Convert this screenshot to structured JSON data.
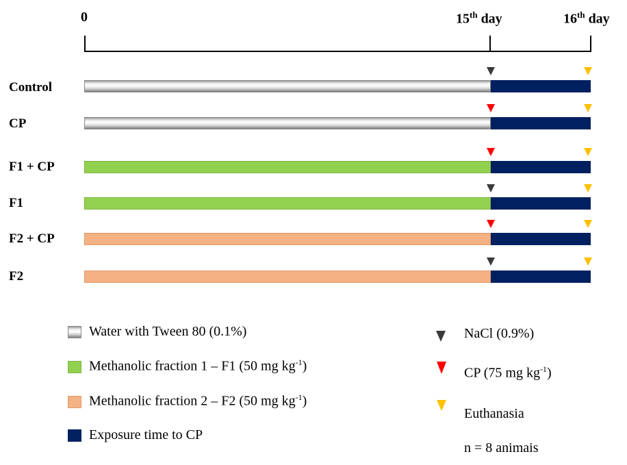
{
  "timeline": {
    "tick_start": "0",
    "tick_mid_num": "15",
    "tick_mid_sup": "th",
    "tick_mid_unit": " day",
    "tick_end_num": "16",
    "tick_end_sup": "th",
    "tick_end_unit": " day"
  },
  "groups": [
    {
      "label": "Control",
      "treatment": "water",
      "marker": "nacl"
    },
    {
      "label": "CP",
      "treatment": "water",
      "marker": "cp"
    },
    {
      "label": "F1 + CP",
      "treatment": "f1",
      "marker": "cp"
    },
    {
      "label": "F1",
      "treatment": "f1",
      "marker": "nacl"
    },
    {
      "label": "F2 + CP",
      "treatment": "f2",
      "marker": "cp"
    },
    {
      "label": "F2",
      "treatment": "f2",
      "marker": "nacl"
    }
  ],
  "legend": {
    "water": "Water with Tween 80 (0.1%)",
    "f1_main": "Methanolic fraction 1 – F1 (50 mg kg",
    "f1_sup": "-1",
    "f1_end": ")",
    "f2_main": "Methanolic fraction 2 – F2 (50 mg kg",
    "f2_sup": "-1",
    "f2_end": ")",
    "exposure": "Exposure time to CP",
    "nacl": "NaCl (0.9%)",
    "cp_main": "CP (75 mg kg",
    "cp_sup": "-1",
    "cp_end": ")",
    "euthanasia": "Euthanasia",
    "n_animals": "n = 8 animais"
  },
  "colors": {
    "water": "#d9d9d9",
    "f1": "#92d050",
    "f2": "#f4b183",
    "exposure": "#002060",
    "nacl_marker": "#3a3a3a",
    "cp_marker": "#ff0000",
    "euthanasia_marker": "#ffc000"
  }
}
